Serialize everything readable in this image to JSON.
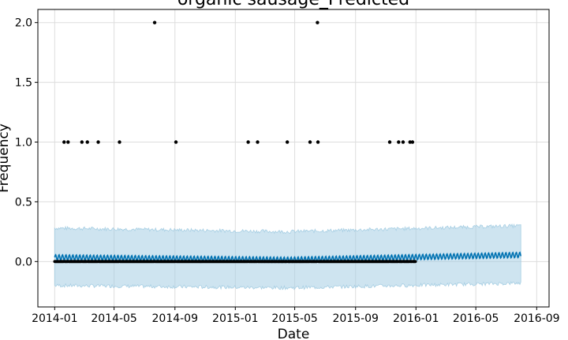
{
  "chart_data": {
    "type": "scatter",
    "title": "organic sausage_Predicted",
    "xlabel": "Date",
    "ylabel": "Frequency",
    "x_ticks": [
      "2014-01",
      "2014-05",
      "2014-09",
      "2015-01",
      "2015-05",
      "2015-09",
      "2016-01",
      "2016-05",
      "2016-09"
    ],
    "y_ticks": [
      "0.0",
      "0.5",
      "1.0",
      "1.5",
      "2.0"
    ],
    "xlim": [
      "2013-11-28",
      "2016-09-26"
    ],
    "ylim": [
      -0.38,
      2.11
    ],
    "grid": true,
    "history_start": "2014-01-01",
    "history_end": "2015-12-31",
    "forecast_end": "2016-07-31",
    "series": [
      {
        "name": "",
        "kind": "observed",
        "color": "#000000",
        "baseline_value": 0,
        "points": [
          {
            "x": "2014-01-20",
            "y": 1
          },
          {
            "x": "2014-01-28",
            "y": 1
          },
          {
            "x": "2014-02-25",
            "y": 1
          },
          {
            "x": "2014-03-08",
            "y": 1
          },
          {
            "x": "2014-03-30",
            "y": 1
          },
          {
            "x": "2014-05-12",
            "y": 1
          },
          {
            "x": "2014-07-22",
            "y": 2
          },
          {
            "x": "2014-09-03",
            "y": 1
          },
          {
            "x": "2015-01-27",
            "y": 1
          },
          {
            "x": "2015-02-15",
            "y": 1
          },
          {
            "x": "2015-04-16",
            "y": 1
          },
          {
            "x": "2015-06-01",
            "y": 1
          },
          {
            "x": "2015-06-16",
            "y": 2
          },
          {
            "x": "2015-06-17",
            "y": 1
          },
          {
            "x": "2015-11-09",
            "y": 1
          },
          {
            "x": "2015-11-27",
            "y": 1
          },
          {
            "x": "2015-12-06",
            "y": 1
          },
          {
            "x": "2015-12-20",
            "y": 1
          },
          {
            "x": "2015-12-25",
            "y": 1
          }
        ]
      },
      {
        "name": "",
        "kind": "forecast",
        "color": "#0072B2",
        "trend_start": 0.035,
        "trend_mid": 0.015,
        "trend_end": 0.055,
        "weekly_amplitude": 0.022
      },
      {
        "name": "",
        "kind": "uncertainty",
        "color": "#a6cee3",
        "upper_start": 0.28,
        "upper_mid": 0.25,
        "upper_end": 0.3,
        "lower_start": -0.2,
        "lower_mid": -0.22,
        "lower_end": -0.18
      }
    ]
  }
}
